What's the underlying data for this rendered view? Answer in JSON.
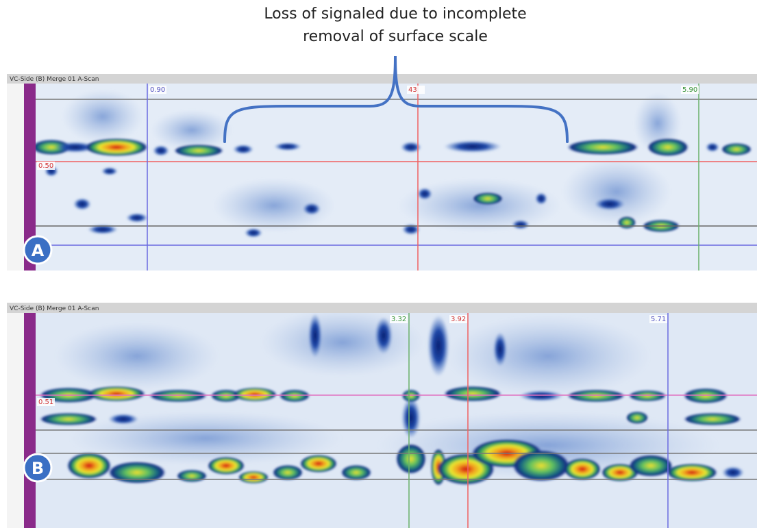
{
  "annotation": {
    "lines": [
      "Loss of signaled due to incomplete",
      "removal of surface scale"
    ]
  },
  "panels": [
    {
      "label": "A",
      "header": "VC-Side (B) Merge 01 A-Scan",
      "cursors": [
        "0.90",
        "43",
        "5.90",
        "0.50"
      ]
    },
    {
      "label": "B",
      "header": "VC-Side (B) Merge 01 A-Scan",
      "cursors": [
        "3.32",
        "3.92",
        "5.71",
        "0.51"
      ]
    }
  ]
}
